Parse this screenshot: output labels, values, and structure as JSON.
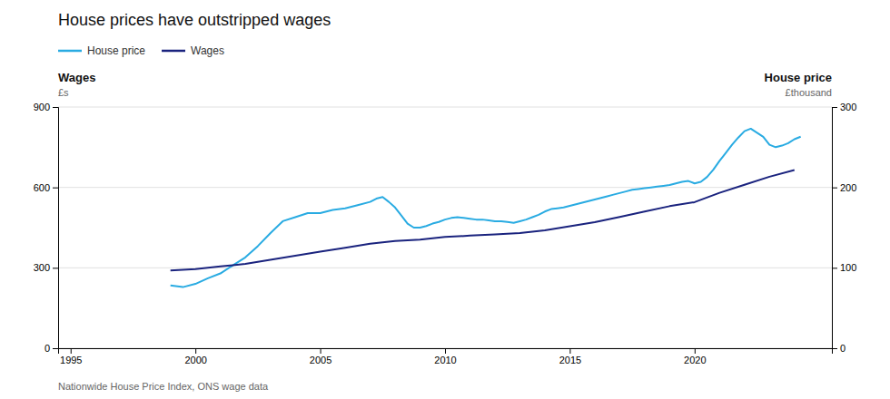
{
  "chart_data": {
    "type": "line",
    "title": "House prices have outstripped wages",
    "source": "Nationwide House Price Index, ONS wage data",
    "ylabel": "Wages",
    "yunit": "£s",
    "y2label": "House price",
    "y2unit": "£thousand",
    "xlim": [
      1994.5,
      2025.5
    ],
    "xticks": [
      1995,
      2000,
      2005,
      2010,
      2015,
      2020
    ],
    "ylim": [
      0,
      900
    ],
    "yticks": [
      0,
      300,
      600,
      900
    ],
    "y2lim": [
      0,
      300
    ],
    "y2ticks": [
      0,
      100,
      200,
      300
    ],
    "grid": true,
    "legend": "top-left",
    "series": [
      {
        "name": "House price",
        "color": "#29ABE2",
        "axis": "y2",
        "x": [
          1999,
          1999.5,
          2000,
          2000.5,
          2001,
          2001.5,
          2002,
          2002.5,
          2003,
          2003.5,
          2004,
          2004.5,
          2005,
          2005.5,
          2006,
          2006.5,
          2007,
          2007.25,
          2007.5,
          2007.75,
          2008,
          2008.25,
          2008.5,
          2008.75,
          2009,
          2009.25,
          2009.5,
          2009.75,
          2010,
          2010.25,
          2010.5,
          2010.75,
          2011,
          2011.25,
          2011.5,
          2011.75,
          2012,
          2012.25,
          2012.5,
          2012.75,
          2013,
          2013.25,
          2013.5,
          2013.75,
          2014,
          2014.25,
          2014.5,
          2014.75,
          2015,
          2015.25,
          2015.5,
          2015.75,
          2016,
          2016.25,
          2016.5,
          2016.75,
          2017,
          2017.25,
          2017.5,
          2017.75,
          2018,
          2018.25,
          2018.5,
          2018.75,
          2019,
          2019.25,
          2019.5,
          2019.75,
          2020,
          2020.25,
          2020.5,
          2020.75,
          2021,
          2021.25,
          2021.5,
          2021.75,
          2022,
          2022.25,
          2022.5,
          2022.75,
          2023,
          2023.25,
          2023.5,
          2023.75,
          2024,
          2024.25
        ],
        "values": [
          78,
          76,
          80,
          87,
          93,
          103,
          113,
          127,
          143,
          158,
          163,
          168,
          168,
          172,
          174,
          178,
          182,
          186,
          188,
          182,
          175,
          165,
          155,
          150,
          150,
          152,
          155,
          157,
          160,
          162,
          163,
          162,
          161,
          160,
          160,
          159,
          158,
          158,
          157,
          156,
          158,
          160,
          163,
          166,
          170,
          173,
          174,
          175,
          177,
          179,
          181,
          183,
          185,
          187,
          189,
          191,
          193,
          195,
          197,
          198,
          199,
          200,
          201,
          202,
          203,
          205,
          207,
          208,
          205,
          207,
          213,
          222,
          233,
          243,
          253,
          262,
          270,
          273,
          268,
          263,
          253,
          250,
          252,
          255,
          260,
          263
        ]
      },
      {
        "name": "Wages",
        "color": "#1a237e",
        "x": [
          1999,
          2000,
          2001,
          2002,
          2003,
          2004,
          2005,
          2006,
          2007,
          2008,
          2009,
          2010,
          2011,
          2012,
          2013,
          2014,
          2015,
          2016,
          2017,
          2018,
          2019,
          2020,
          2021,
          2022,
          2023,
          2024
        ],
        "values": [
          290,
          295,
          305,
          315,
          330,
          345,
          360,
          375,
          390,
          400,
          405,
          415,
          420,
          425,
          430,
          440,
          455,
          470,
          490,
          510,
          530,
          545,
          580,
          610,
          640,
          665
        ]
      }
    ]
  }
}
